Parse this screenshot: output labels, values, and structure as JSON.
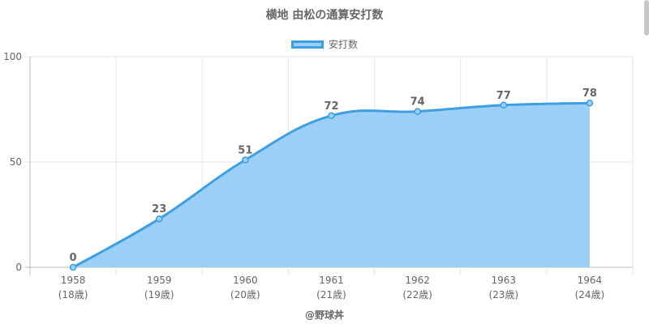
{
  "chart_data": {
    "type": "area",
    "title": "横地 由松の通算安打数",
    "categories": [
      "1958",
      "1959",
      "1960",
      "1961",
      "1962",
      "1963",
      "1964"
    ],
    "age_labels": [
      "(18歳)",
      "(19歳)",
      "(20歳)",
      "(21歳)",
      "(22歳)",
      "(23歳)",
      "(24歳)"
    ],
    "series": [
      {
        "name": "安打数",
        "values": [
          0,
          23,
          51,
          72,
          74,
          77,
          78
        ]
      }
    ],
    "ylim": [
      0,
      100
    ],
    "yticks": [
      0,
      50,
      100
    ],
    "grid": true,
    "legend": "top-center",
    "colors": {
      "line": "#3d9fe3",
      "fill": "#9ccff5"
    }
  },
  "credit": "@野球丼"
}
